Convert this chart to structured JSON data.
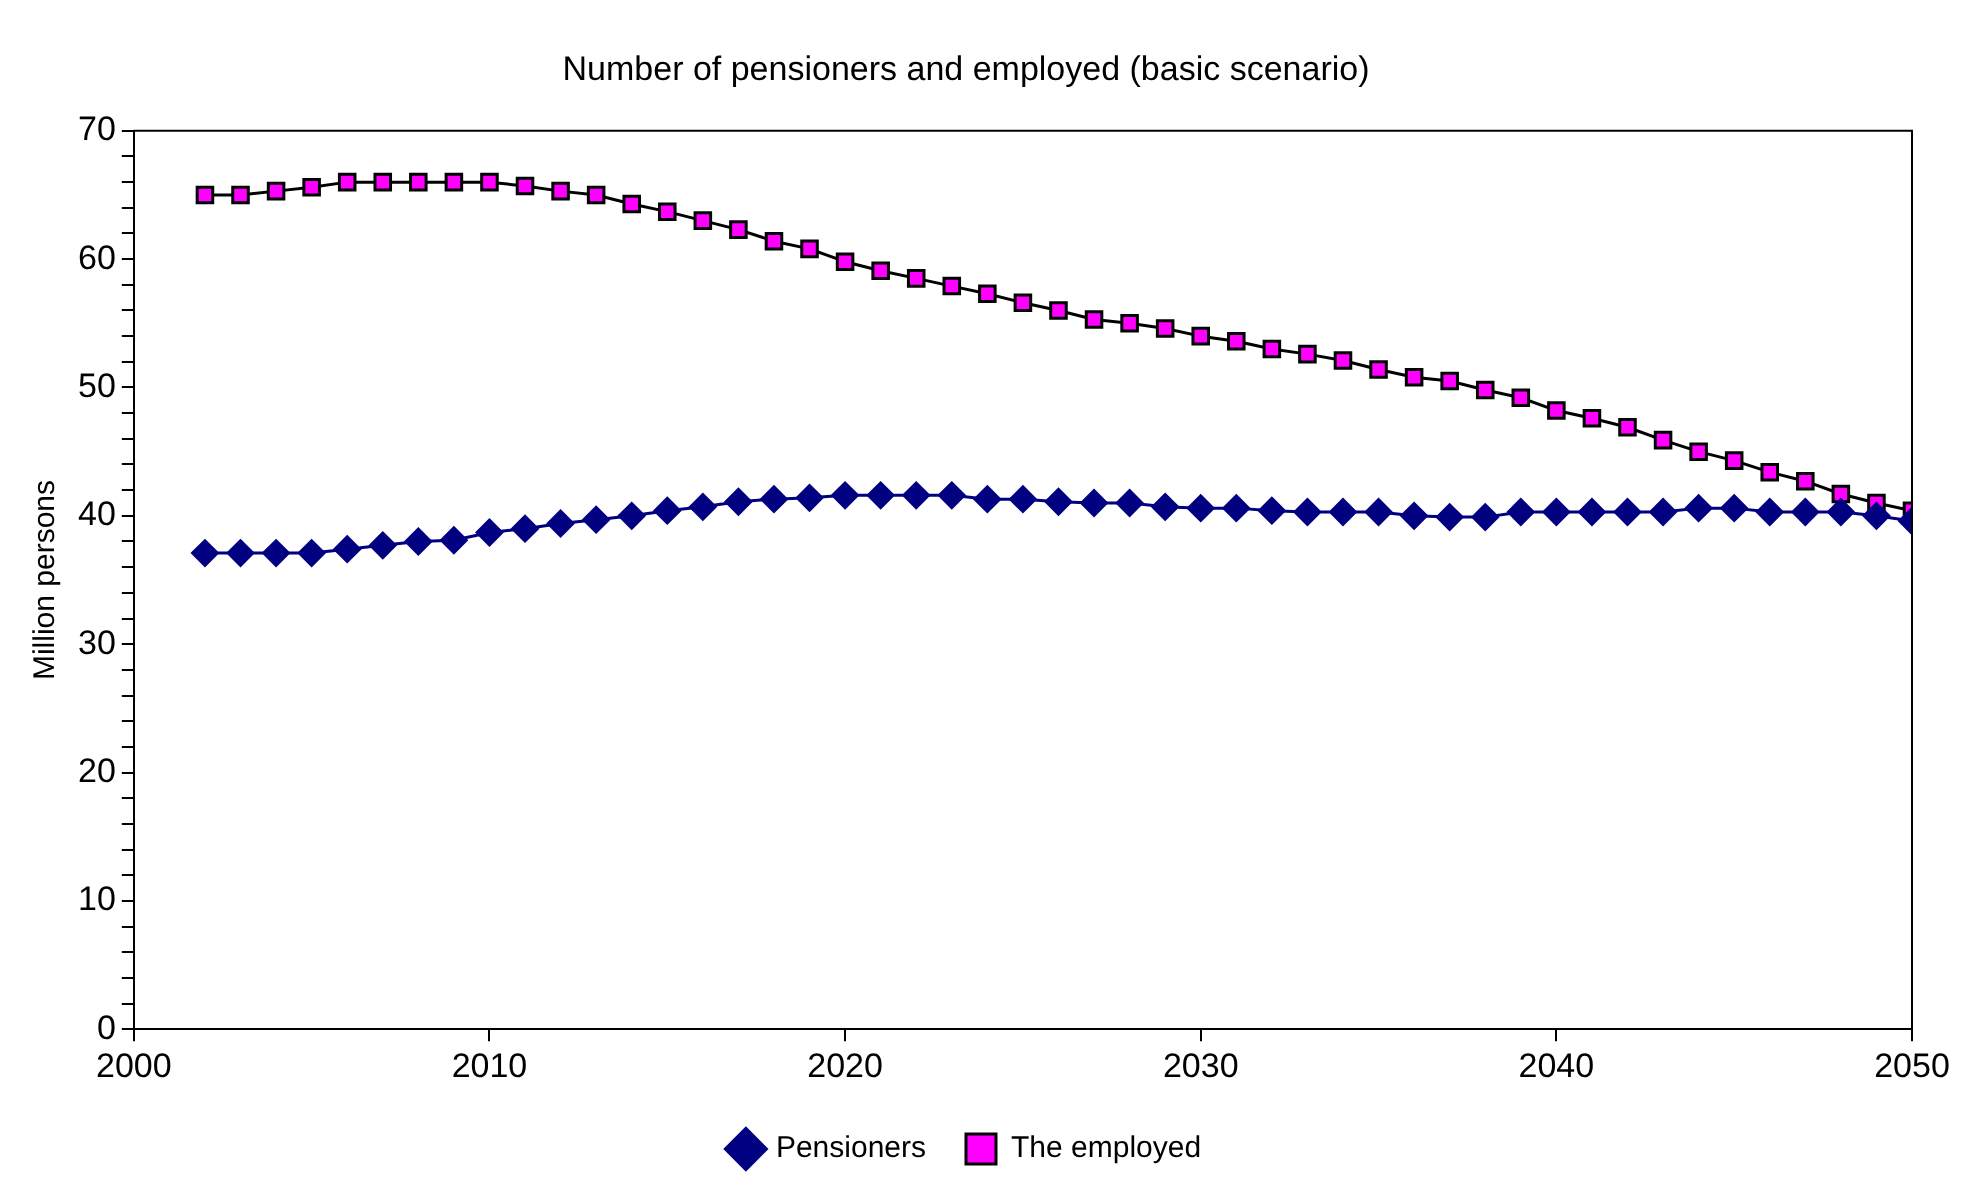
{
  "chart_data": {
    "type": "line",
    "title": "Number of pensioners and employed (basic scenario)",
    "ylabel": "Million persons",
    "x": [
      2002,
      2003,
      2004,
      2005,
      2006,
      2007,
      2008,
      2009,
      2010,
      2011,
      2012,
      2013,
      2014,
      2015,
      2016,
      2017,
      2018,
      2019,
      2020,
      2021,
      2022,
      2023,
      2024,
      2025,
      2026,
      2027,
      2028,
      2029,
      2030,
      2031,
      2032,
      2033,
      2034,
      2035,
      2036,
      2037,
      2038,
      2039,
      2040,
      2041,
      2042,
      2043,
      2044,
      2045,
      2046,
      2047,
      2048,
      2049,
      2050
    ],
    "series": [
      {
        "name": "Pensioners",
        "color": "#000080",
        "marker": "diamond",
        "values": [
          37.1,
          37.1,
          37.1,
          37.1,
          37.4,
          37.7,
          38,
          38.1,
          38.7,
          39,
          39.4,
          39.7,
          40,
          40.4,
          40.7,
          41.1,
          41.3,
          41.4,
          41.6,
          41.6,
          41.6,
          41.6,
          41.3,
          41.3,
          41.1,
          41,
          41,
          40.7,
          40.6,
          40.6,
          40.4,
          40.3,
          40.3,
          40.3,
          40,
          39.9,
          39.9,
          40.3,
          40.3,
          40.3,
          40.3,
          40.3,
          40.6,
          40.6,
          40.3,
          40.3,
          40.3,
          40,
          39.6
        ]
      },
      {
        "name": "The employed",
        "color": "#ff00ff",
        "marker": "square",
        "values": [
          65,
          65,
          65.3,
          65.6,
          66,
          66,
          66,
          66,
          66,
          65.7,
          65.3,
          65,
          64.3,
          63.7,
          63,
          62.3,
          61.4,
          60.8,
          59.8,
          59.1,
          58.5,
          57.9,
          57.3,
          56.6,
          56,
          55.3,
          55,
          54.6,
          54,
          53.6,
          53,
          52.6,
          52.1,
          51.4,
          50.8,
          50.5,
          49.8,
          49.2,
          48.2,
          47.6,
          46.9,
          45.9,
          45,
          44.3,
          43.4,
          42.7,
          41.7,
          41,
          40.4
        ]
      }
    ],
    "xlim": [
      2000,
      2050
    ],
    "xticks": [
      2000,
      2010,
      2020,
      2030,
      2040,
      2050
    ],
    "ylim": [
      0,
      70
    ],
    "yticks": [
      0,
      {
        "value": 2,
        "label": null
      },
      {
        "value": 4,
        "label": null
      },
      {
        "value": 6,
        "label": null
      },
      {
        "value": 8,
        "label": null
      },
      10,
      {
        "value": 12,
        "label": null
      },
      {
        "value": 14,
        "label": null
      },
      {
        "value": 16,
        "label": null
      },
      {
        "value": 18,
        "label": null
      },
      20,
      {
        "value": 22,
        "label": null
      },
      {
        "value": 24,
        "label": null
      },
      {
        "value": 26,
        "label": null
      },
      {
        "value": 28,
        "label": null
      },
      30,
      {
        "value": 32,
        "label": null
      },
      {
        "value": 34,
        "label": null
      },
      {
        "value": 36,
        "label": null
      },
      {
        "value": 38,
        "label": null
      },
      40,
      {
        "value": 42,
        "label": null
      },
      {
        "value": 44,
        "label": null
      },
      {
        "value": 46,
        "label": null
      },
      {
        "value": 48,
        "label": null
      },
      50,
      {
        "value": 52,
        "label": null
      },
      {
        "value": 54,
        "label": null
      },
      {
        "value": 56,
        "label": null
      },
      {
        "value": 58,
        "label": null
      },
      60,
      {
        "value": 62,
        "label": null
      },
      {
        "value": 64,
        "label": null
      },
      {
        "value": 66,
        "label": null
      },
      {
        "value": 68,
        "label": null
      },
      70
    ],
    "grid": false,
    "legend": "bottom",
    "line_style": "solid"
  }
}
